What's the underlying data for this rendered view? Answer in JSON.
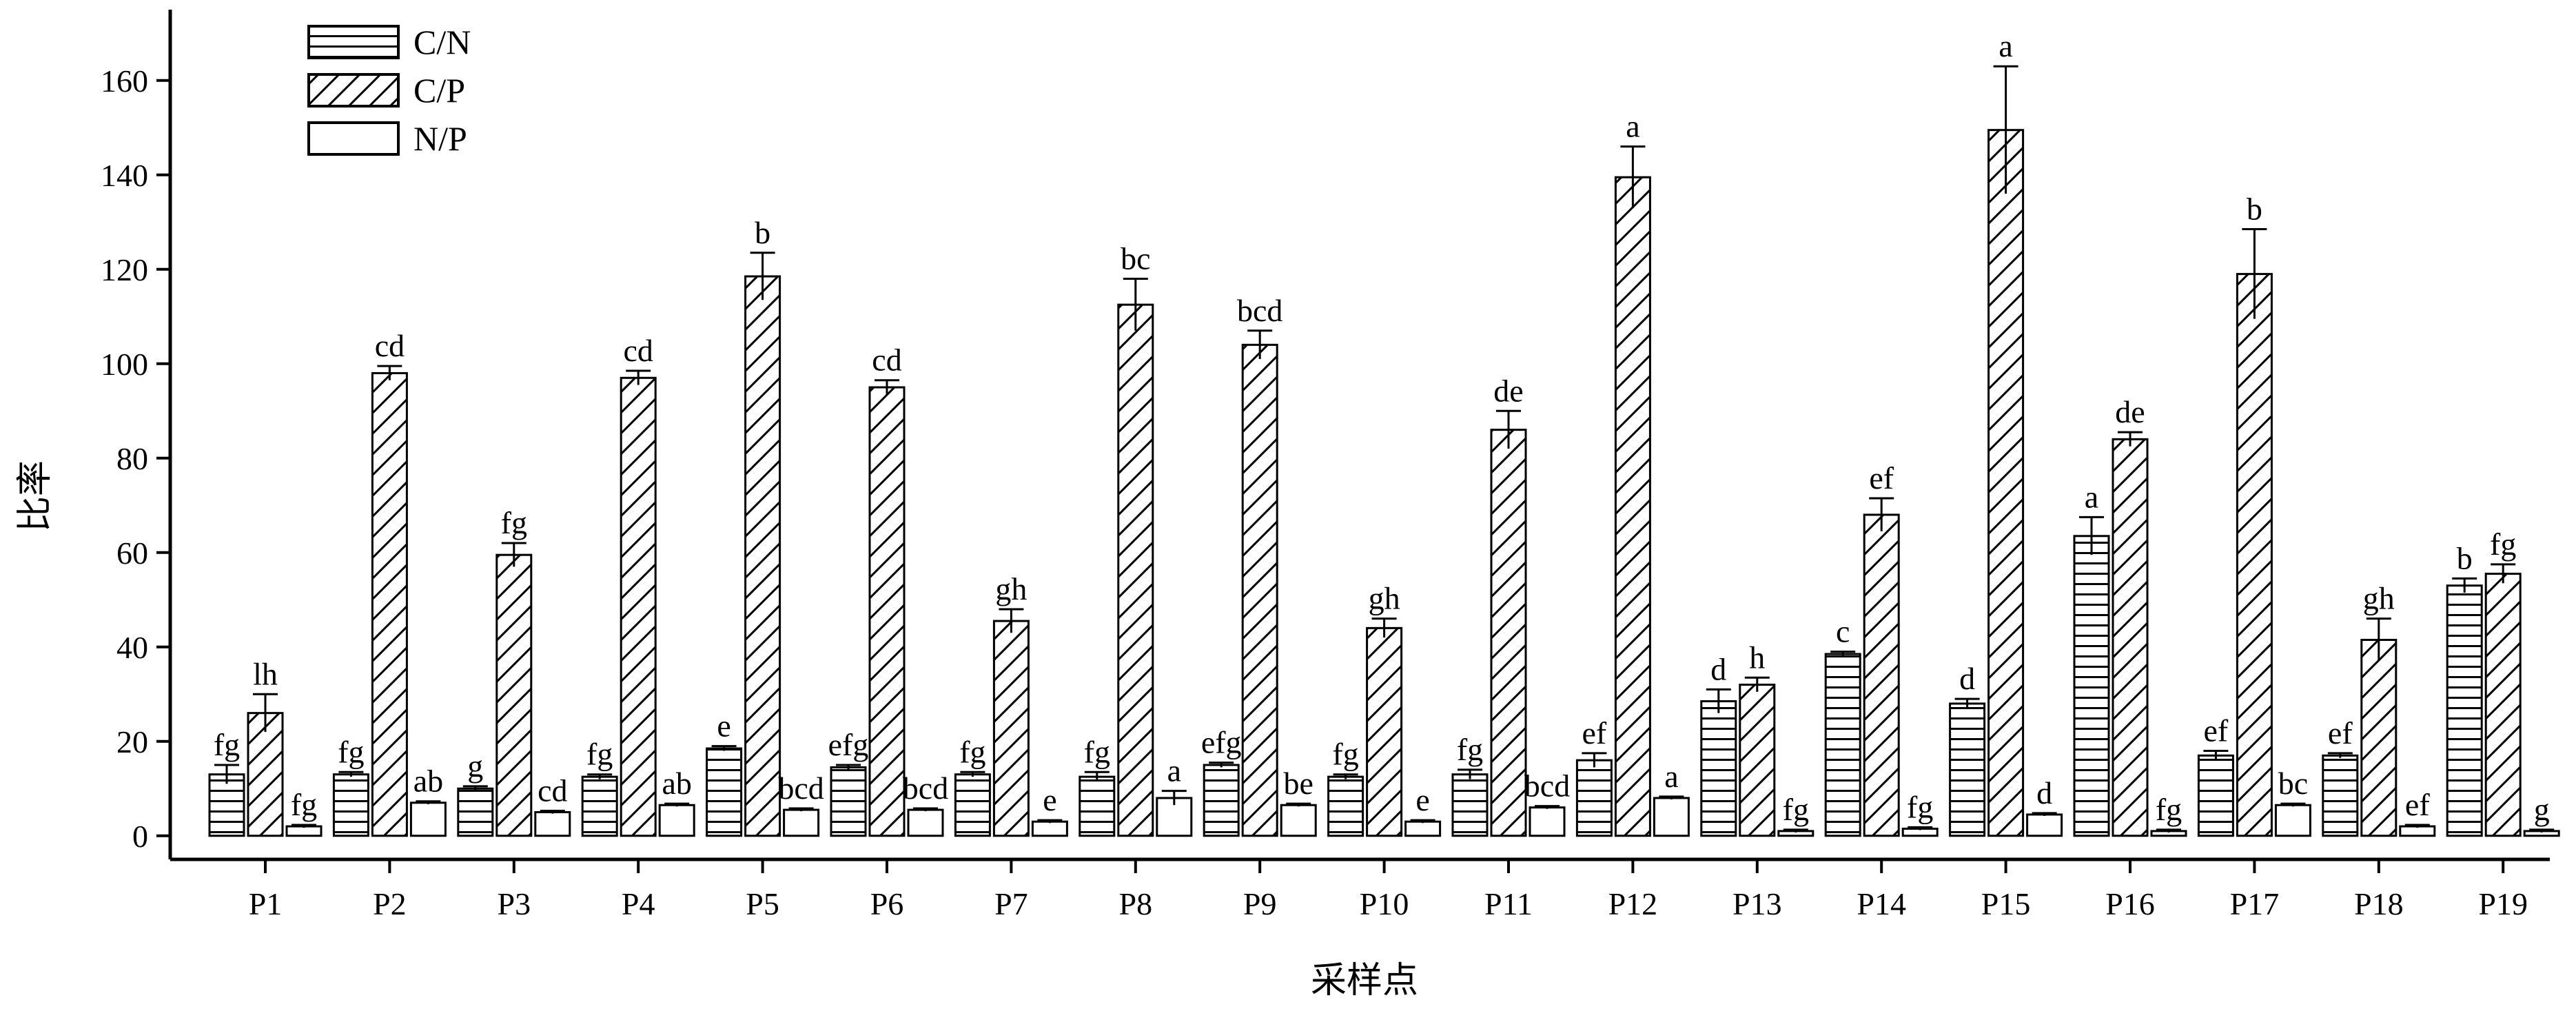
{
  "chart_data": {
    "type": "bar",
    "xlabel": "采样点",
    "ylabel": "比率",
    "ylim": [
      -5,
      175
    ],
    "yticks": [
      0,
      20,
      40,
      60,
      80,
      100,
      120,
      140,
      160
    ],
    "categories": [
      "P1",
      "P2",
      "P3",
      "P4",
      "P5",
      "P6",
      "P7",
      "P8",
      "P9",
      "P10",
      "P11",
      "P12",
      "P13",
      "P14",
      "P15",
      "P16",
      "P17",
      "P18",
      "P19"
    ],
    "legend": {
      "position": "top-left",
      "entries": [
        "C/N",
        "C/P",
        "N/P"
      ]
    },
    "series": [
      {
        "name": "C/N",
        "pattern": "horizontal-lines",
        "values": [
          13,
          13,
          10,
          12.5,
          18.5,
          14.5,
          13,
          12.5,
          15,
          12.5,
          13,
          16,
          28.5,
          38.5,
          28,
          63.5,
          17,
          17,
          53
        ],
        "errors": [
          2,
          0.5,
          0.5,
          0.5,
          0.5,
          0.5,
          0.5,
          1,
          0.5,
          0.5,
          1,
          1.5,
          2.5,
          0.5,
          1,
          4,
          1,
          0.5,
          1.5
        ],
        "labels": [
          "fg",
          "fg",
          "g",
          "fg",
          "e",
          "efg",
          "fg",
          "fg",
          "efg",
          "fg",
          "fg",
          "ef",
          "d",
          "c",
          "d",
          "a",
          "ef",
          "ef",
          "b"
        ]
      },
      {
        "name": "C/P",
        "pattern": "diagonal-lines",
        "values": [
          26,
          98,
          59.5,
          97,
          118.5,
          95,
          45.5,
          112.5,
          104,
          44,
          86,
          139.5,
          32,
          68,
          149.5,
          84,
          119,
          41.5,
          55.5
        ],
        "errors": [
          4,
          1.5,
          2.5,
          1.5,
          5,
          1.5,
          2.5,
          5.5,
          3,
          2,
          4,
          6.5,
          1.5,
          3.5,
          13.5,
          1.5,
          9.5,
          4.5,
          2
        ],
        "labels": [
          "lh",
          "cd",
          "fg",
          "cd",
          "b",
          "cd",
          "gh",
          "bc",
          "bcd",
          "gh",
          "de",
          "a",
          "h",
          "ef",
          "a",
          "de",
          "b",
          "gh",
          "fg"
        ]
      },
      {
        "name": "N/P",
        "pattern": "empty",
        "values": [
          2,
          7,
          5,
          6.5,
          5.5,
          5.5,
          3,
          8,
          6.5,
          3,
          6,
          8,
          1,
          1.5,
          4.5,
          1,
          6.5,
          2,
          1
        ],
        "errors": [
          0.3,
          0.3,
          0.3,
          0.3,
          0.3,
          0.3,
          0.3,
          1.5,
          0.3,
          0.3,
          0.3,
          0.3,
          0.3,
          0.3,
          0.3,
          0.3,
          0.3,
          0.3,
          0.3
        ],
        "labels": [
          "fg",
          "ab",
          "cd",
          "ab",
          "bcd",
          "bcd",
          "e",
          "a",
          "be",
          "e",
          "bcd",
          "a",
          "fg",
          "fg",
          "d",
          "fg",
          "bc",
          "ef",
          "g"
        ]
      }
    ]
  }
}
